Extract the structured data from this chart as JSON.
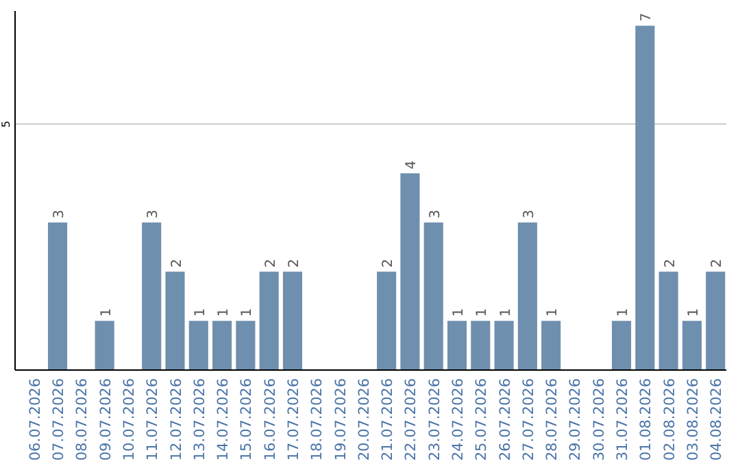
{
  "chart_data": {
    "type": "bar",
    "categories": [
      "06.07.2026",
      "07.07.2026",
      "08.07.2026",
      "09.07.2026",
      "10.07.2026",
      "11.07.2026",
      "12.07.2026",
      "13.07.2026",
      "14.07.2026",
      "15.07.2026",
      "16.07.2026",
      "17.07.2026",
      "18.07.2026",
      "19.07.2026",
      "20.07.2026",
      "21.07.2026",
      "22.07.2026",
      "23.07.2026",
      "24.07.2026",
      "25.07.2026",
      "26.07.2026",
      "27.07.2026",
      "28.07.2026",
      "29.07.2026",
      "30.07.2026",
      "31.07.2026",
      "01.08.2026",
      "02.08.2026",
      "03.08.2026",
      "04.08.2026"
    ],
    "values": [
      0,
      3,
      0,
      1,
      0,
      3,
      2,
      1,
      1,
      1,
      2,
      2,
      0,
      0,
      0,
      2,
      4,
      3,
      1,
      1,
      1,
      3,
      1,
      0,
      0,
      1,
      7,
      2,
      1,
      2
    ],
    "value_labels": [
      null,
      "3",
      null,
      "1",
      null,
      "3",
      "2",
      "1",
      "1",
      "1",
      "2",
      "2",
      null,
      null,
      null,
      "2",
      "4",
      "3",
      "1",
      "1",
      "1",
      "3",
      "1",
      null,
      null,
      "1",
      "7",
      "2",
      "1",
      "2"
    ],
    "color": "#6f8fae",
    "ylim": [
      0,
      7.3
    ],
    "yticks": [
      5
    ],
    "grid": "y"
  }
}
